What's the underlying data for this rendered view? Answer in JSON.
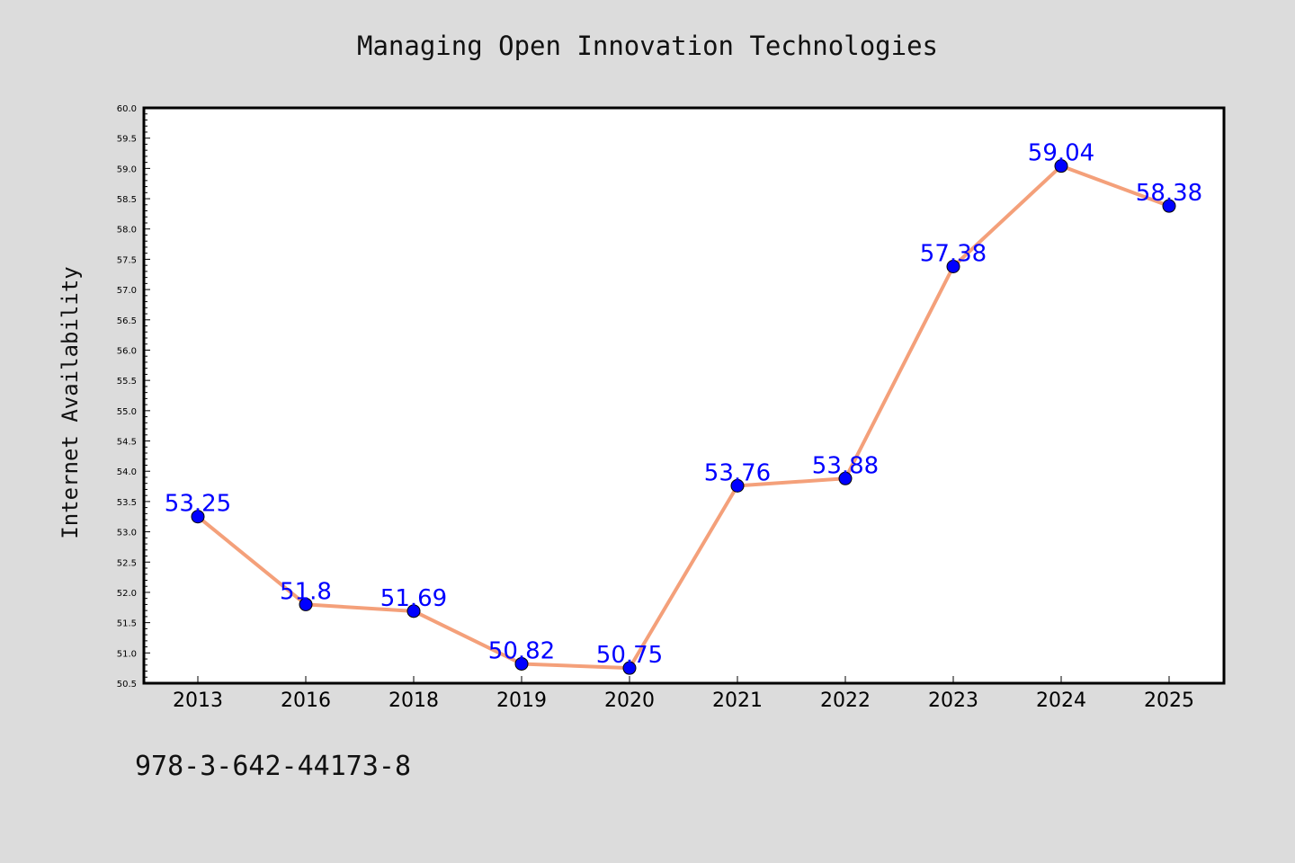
{
  "chart_data": {
    "type": "line",
    "title": "Managing Open Innovation Technologies",
    "xlabel": "",
    "ylabel": "Internet Availability",
    "categories": [
      "2013",
      "2016",
      "2018",
      "2019",
      "2020",
      "2021",
      "2022",
      "2023",
      "2024",
      "2025"
    ],
    "series": [
      {
        "values": [
          53.25,
          51.8,
          51.69,
          50.82,
          50.75,
          53.76,
          53.88,
          57.38,
          59.04,
          58.38
        ],
        "data_labels": [
          "53.25",
          "51.8",
          "51.69",
          "50.82",
          "50.75",
          "53.76",
          "53.88",
          "57.38",
          "59.04",
          "58.38"
        ]
      }
    ],
    "ylim": [
      50.5,
      60.0
    ],
    "yticks": [
      "50.5",
      "51.0",
      "51.5",
      "52.0",
      "52.5",
      "53.0",
      "53.5",
      "54.0",
      "54.5",
      "55.0",
      "55.5",
      "56.0",
      "56.5",
      "57.0",
      "57.5",
      "58.0",
      "58.5",
      "59.0",
      "59.5",
      "60.0"
    ],
    "grid": false,
    "colors": {
      "line": "#f4a07a",
      "marker": "#0000ff",
      "data_label": "#0000ff",
      "background": "#dcdcdc",
      "plot_background": "#ffffff"
    }
  },
  "footer": {
    "isbn": "978-3-642-44173-8"
  }
}
